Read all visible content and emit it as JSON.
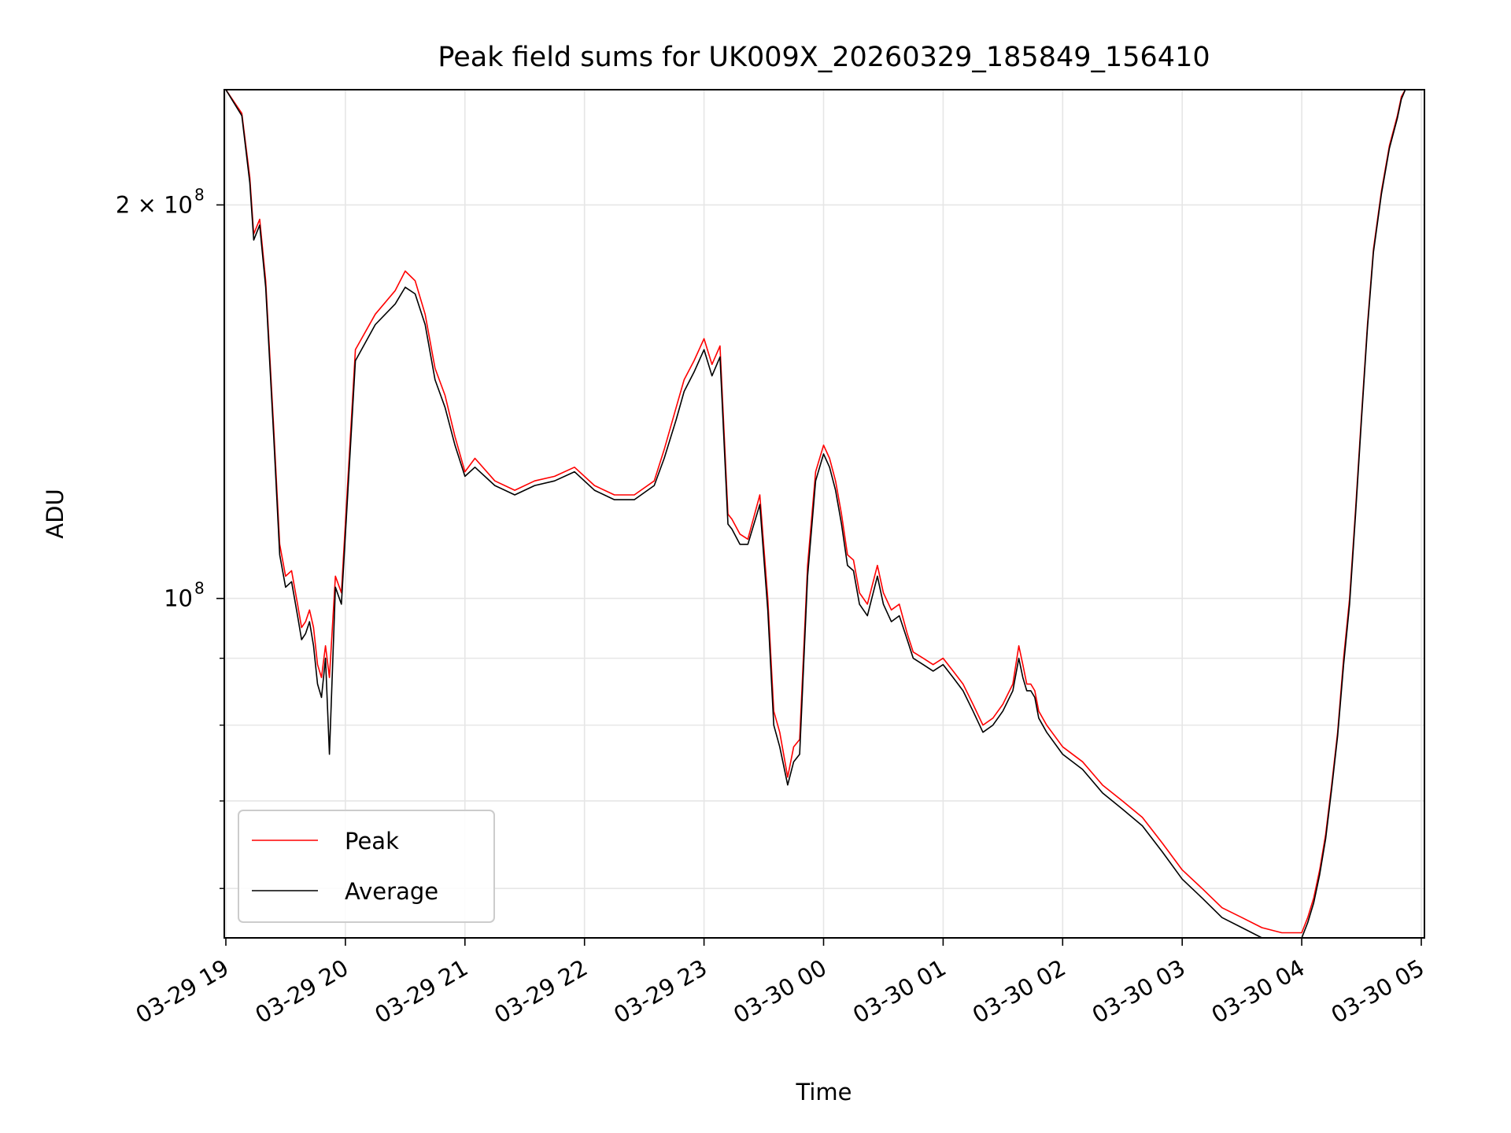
{
  "chart_data": {
    "type": "line",
    "title": "Peak field sums for UK009X_20260329_185849_156410",
    "xlabel": "Time",
    "ylabel": "ADU",
    "x_start": "03-29 19",
    "x_end": "03-30 05",
    "x_ticks": [
      "03-29 19",
      "03-29 20",
      "03-29 21",
      "03-29 22",
      "03-29 23",
      "03-30 00",
      "03-30 01",
      "03-30 02",
      "03-30 03",
      "03-30 04",
      "03-30 05"
    ],
    "y_scale": "log",
    "ylim": [
      55000000,
      245000000
    ],
    "y_major_ticks": [
      {
        "value": 100000000,
        "base": "10",
        "exp": "8"
      },
      {
        "value": 200000000,
        "base": "2 × 10",
        "exp": "8"
      }
    ],
    "y_minor_ticks": [
      60000000,
      70000000,
      80000000,
      90000000
    ],
    "grid": true,
    "legend": {
      "placement": "lower left",
      "entries": [
        "Peak",
        "Average"
      ]
    },
    "colors": {
      "Peak": "#ff0000",
      "Average": "#000000",
      "grid": "#e6e6e6"
    },
    "series": [
      {
        "name": "Peak",
        "x": [
          "03-29 19:00",
          "03-29 19:08",
          "03-29 19:12",
          "03-29 19:14",
          "03-29 19:17",
          "03-29 19:20",
          "03-29 19:24",
          "03-29 19:27",
          "03-29 19:30",
          "03-29 19:33",
          "03-29 19:36",
          "03-29 19:38",
          "03-29 19:40",
          "03-29 19:42",
          "03-29 19:44",
          "03-29 19:46",
          "03-29 19:48",
          "03-29 19:50",
          "03-29 19:52",
          "03-29 19:55",
          "03-29 19:58",
          "03-29 20:05",
          "03-29 20:15",
          "03-29 20:25",
          "03-29 20:30",
          "03-29 20:35",
          "03-29 20:40",
          "03-29 20:45",
          "03-29 20:50",
          "03-29 20:55",
          "03-29 21:00",
          "03-29 21:05",
          "03-29 21:15",
          "03-29 21:25",
          "03-29 21:35",
          "03-29 21:45",
          "03-29 21:55",
          "03-29 22:05",
          "03-29 22:15",
          "03-29 22:25",
          "03-29 22:35",
          "03-29 22:40",
          "03-29 22:46",
          "03-29 22:50",
          "03-29 22:55",
          "03-29 23:00",
          "03-29 23:04",
          "03-29 23:08",
          "03-29 23:12",
          "03-29 23:14",
          "03-29 23:18",
          "03-29 23:22",
          "03-29 23:28",
          "03-29 23:32",
          "03-29 23:35",
          "03-29 23:38",
          "03-29 23:42",
          "03-29 23:45",
          "03-29 23:48",
          "03-29 23:52",
          "03-29 23:56",
          "03-30 00:00",
          "03-30 00:03",
          "03-30 00:06",
          "03-30 00:09",
          "03-30 00:12",
          "03-30 00:15",
          "03-30 00:18",
          "03-30 00:22",
          "03-30 00:27",
          "03-30 00:30",
          "03-30 00:34",
          "03-30 00:38",
          "03-30 00:42",
          "03-30 00:45",
          "03-30 00:50",
          "03-30 00:55",
          "03-30 01:00",
          "03-30 01:05",
          "03-30 01:10",
          "03-30 01:15",
          "03-30 01:20",
          "03-30 01:25",
          "03-30 01:30",
          "03-30 01:35",
          "03-30 01:38",
          "03-30 01:40",
          "03-30 01:42",
          "03-30 01:44",
          "03-30 01:46",
          "03-30 01:48",
          "03-30 01:52",
          "03-30 02:00",
          "03-30 02:10",
          "03-30 02:20",
          "03-30 02:30",
          "03-30 02:40",
          "03-30 02:50",
          "03-30 03:00",
          "03-30 03:10",
          "03-30 03:20",
          "03-30 03:30",
          "03-30 03:40",
          "03-30 03:50",
          "03-30 04:00",
          "03-30 04:03",
          "03-30 04:06",
          "03-30 04:09",
          "03-30 04:12",
          "03-30 04:15",
          "03-30 04:18",
          "03-30 04:21",
          "03-30 04:24",
          "03-30 04:27",
          "03-30 04:30",
          "03-30 04:33",
          "03-30 04:36",
          "03-30 04:40",
          "03-30 04:44",
          "03-30 04:48",
          "03-30 04:50",
          "03-30 04:52",
          "03-30 04:55",
          "03-30 04:58",
          "03-30 05:00"
        ],
        "values": [
          245000000,
          235000000,
          210000000,
          190000000,
          195000000,
          175000000,
          135000000,
          110000000,
          104000000,
          105000000,
          99000000,
          95000000,
          96000000,
          98000000,
          95000000,
          89000000,
          87000000,
          92000000,
          87000000,
          104000000,
          101000000,
          155000000,
          165000000,
          172000000,
          178000000,
          175000000,
          165000000,
          150000000,
          143000000,
          133000000,
          125000000,
          128000000,
          123000000,
          121000000,
          123000000,
          124000000,
          126000000,
          122000000,
          120000000,
          120000000,
          123000000,
          130000000,
          140000000,
          147000000,
          152000000,
          158000000,
          151000000,
          156000000,
          116000000,
          115000000,
          112000000,
          111000000,
          120000000,
          100000000,
          82000000,
          79000000,
          73000000,
          77000000,
          78000000,
          106000000,
          125000000,
          131000000,
          128000000,
          123000000,
          116000000,
          108000000,
          107000000,
          101000000,
          99000000,
          106000000,
          101000000,
          98000000,
          99000000,
          94000000,
          91000000,
          90000000,
          89000000,
          90000000,
          88000000,
          86000000,
          83000000,
          80000000,
          81000000,
          83000000,
          86000000,
          92000000,
          89000000,
          86000000,
          86000000,
          85000000,
          82000000,
          80000000,
          77000000,
          75000000,
          72000000,
          70000000,
          68000000,
          65000000,
          62000000,
          60000000,
          58000000,
          57000000,
          56000000,
          55500000,
          55500000,
          57000000,
          59000000,
          62000000,
          66000000,
          72000000,
          79000000,
          90000000,
          100000000,
          117000000,
          138000000,
          162000000,
          185000000,
          205000000,
          222000000,
          234000000,
          242000000,
          245000000,
          245000000,
          245000000,
          245000000
        ]
      },
      {
        "name": "Average",
        "x": [
          "03-29 19:00",
          "03-29 19:08",
          "03-29 19:12",
          "03-29 19:14",
          "03-29 19:17",
          "03-29 19:20",
          "03-29 19:24",
          "03-29 19:27",
          "03-29 19:30",
          "03-29 19:33",
          "03-29 19:36",
          "03-29 19:38",
          "03-29 19:40",
          "03-29 19:42",
          "03-29 19:44",
          "03-29 19:46",
          "03-29 19:48",
          "03-29 19:50",
          "03-29 19:52",
          "03-29 19:55",
          "03-29 19:58",
          "03-29 20:05",
          "03-29 20:15",
          "03-29 20:25",
          "03-29 20:30",
          "03-29 20:35",
          "03-29 20:40",
          "03-29 20:45",
          "03-29 20:50",
          "03-29 20:55",
          "03-29 21:00",
          "03-29 21:05",
          "03-29 21:15",
          "03-29 21:25",
          "03-29 21:35",
          "03-29 21:45",
          "03-29 21:55",
          "03-29 22:05",
          "03-29 22:15",
          "03-29 22:25",
          "03-29 22:35",
          "03-29 22:40",
          "03-29 22:46",
          "03-29 22:50",
          "03-29 22:55",
          "03-29 23:00",
          "03-29 23:04",
          "03-29 23:08",
          "03-29 23:12",
          "03-29 23:14",
          "03-29 23:18",
          "03-29 23:22",
          "03-29 23:28",
          "03-29 23:32",
          "03-29 23:35",
          "03-29 23:38",
          "03-29 23:42",
          "03-29 23:45",
          "03-29 23:48",
          "03-29 23:52",
          "03-29 23:56",
          "03-30 00:00",
          "03-30 00:03",
          "03-30 00:06",
          "03-30 00:09",
          "03-30 00:12",
          "03-30 00:15",
          "03-30 00:18",
          "03-30 00:22",
          "03-30 00:27",
          "03-30 00:30",
          "03-30 00:34",
          "03-30 00:38",
          "03-30 00:42",
          "03-30 00:45",
          "03-30 00:50",
          "03-30 00:55",
          "03-30 01:00",
          "03-30 01:05",
          "03-30 01:10",
          "03-30 01:15",
          "03-30 01:20",
          "03-30 01:25",
          "03-30 01:30",
          "03-30 01:35",
          "03-30 01:38",
          "03-30 01:40",
          "03-30 01:42",
          "03-30 01:44",
          "03-30 01:46",
          "03-30 01:48",
          "03-30 01:52",
          "03-30 02:00",
          "03-30 02:10",
          "03-30 02:20",
          "03-30 02:30",
          "03-30 02:40",
          "03-30 02:50",
          "03-30 03:00",
          "03-30 03:10",
          "03-30 03:20",
          "03-30 03:30",
          "03-30 03:40",
          "03-30 03:50",
          "03-30 04:00",
          "03-30 04:03",
          "03-30 04:06",
          "03-30 04:09",
          "03-30 04:12",
          "03-30 04:15",
          "03-30 04:18",
          "03-30 04:21",
          "03-30 04:24",
          "03-30 04:27",
          "03-30 04:30",
          "03-30 04:33",
          "03-30 04:36",
          "03-30 04:40",
          "03-30 04:44",
          "03-30 04:48",
          "03-30 04:50",
          "03-30 04:52",
          "03-30 04:55",
          "03-30 04:58",
          "03-30 05:00"
        ],
        "values": [
          245000000,
          234000000,
          208000000,
          188000000,
          193000000,
          173000000,
          133000000,
          108000000,
          102000000,
          103000000,
          97000000,
          93000000,
          94000000,
          96000000,
          92000000,
          86000000,
          84000000,
          90000000,
          76000000,
          102000000,
          99000000,
          152000000,
          162000000,
          168000000,
          173000000,
          171000000,
          162000000,
          147000000,
          140000000,
          131000000,
          124000000,
          126000000,
          122000000,
          120000000,
          122000000,
          123000000,
          125000000,
          121000000,
          119000000,
          119000000,
          122000000,
          128000000,
          137000000,
          144000000,
          149000000,
          155000000,
          148000000,
          153000000,
          114000000,
          113000000,
          110000000,
          110000000,
          118000000,
          98000000,
          80000000,
          77000000,
          72000000,
          75000000,
          76000000,
          104000000,
          123000000,
          129000000,
          126000000,
          121000000,
          114000000,
          106000000,
          105000000,
          99000000,
          97000000,
          104000000,
          99000000,
          96000000,
          97000000,
          93000000,
          90000000,
          89000000,
          88000000,
          89000000,
          87000000,
          85000000,
          82000000,
          79000000,
          80000000,
          82000000,
          85000000,
          90000000,
          87000000,
          85000000,
          85000000,
          84000000,
          81000000,
          79000000,
          76000000,
          74000000,
          71000000,
          69000000,
          67000000,
          64000000,
          61000000,
          59000000,
          57000000,
          56000000,
          55000000,
          55000000,
          55000000,
          56500000,
          58500000,
          61500000,
          65500000,
          71500000,
          78500000,
          89000000,
          99000000,
          116000000,
          137000000,
          161000000,
          184000000,
          204000000,
          221000000,
          233000000,
          241000000,
          245000000,
          245000000,
          245000000,
          245000000
        ]
      }
    ]
  }
}
